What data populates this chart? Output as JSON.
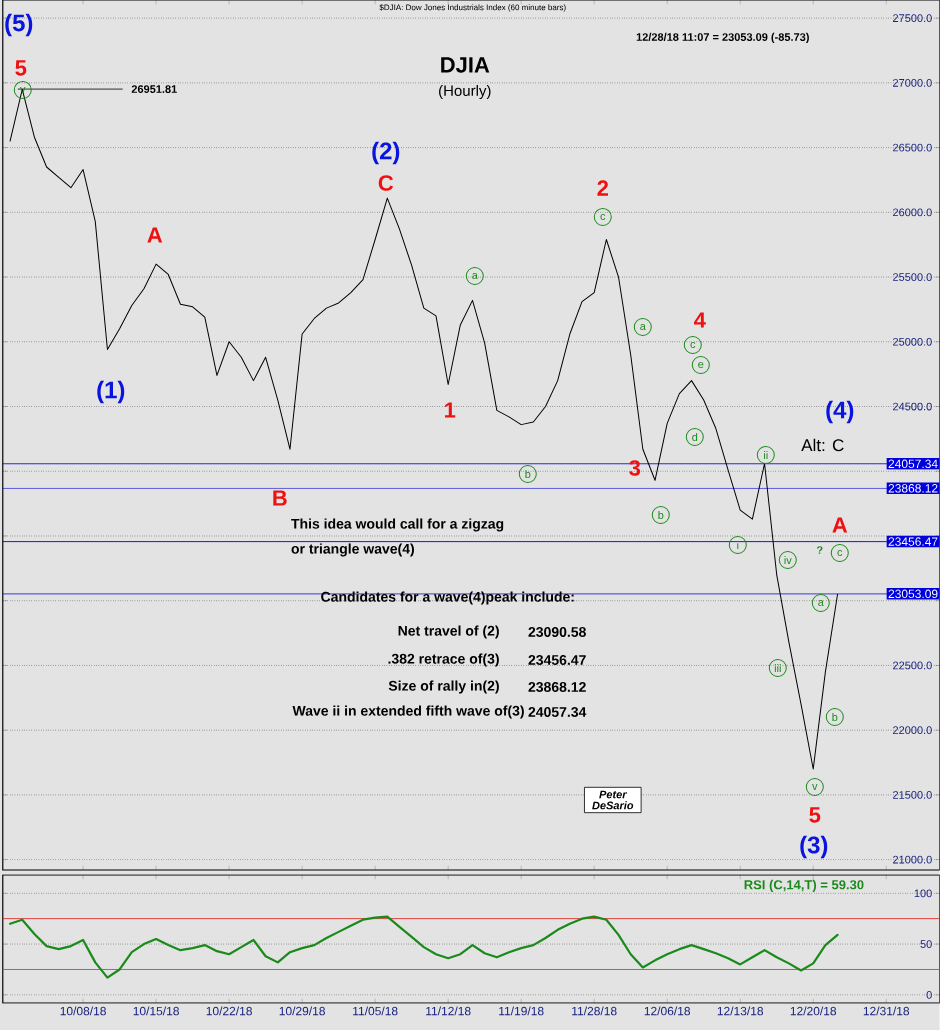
{
  "chart_data": [
    {
      "type": "line",
      "title": "DJIA",
      "subtitle": "(Hourly)",
      "color": "#000000",
      "values": [
        26550,
        26950,
        26580,
        26350,
        26270,
        26190,
        26330,
        25930,
        24940,
        25100,
        25280,
        25410,
        25600,
        25520,
        25290,
        25270,
        25190,
        24740,
        25000,
        24880,
        24700,
        24880,
        24550,
        24170,
        25060,
        25180,
        25260,
        25300,
        25380,
        25480,
        25790,
        26110,
        25870,
        25590,
        25260,
        25200,
        24670,
        25130,
        25320,
        24990,
        24470,
        24420,
        24360,
        24380,
        24500,
        24700,
        25060,
        25310,
        25380,
        25790,
        25500,
        24900,
        24170,
        23930,
        24370,
        24600,
        24700,
        24550,
        24330,
        24010,
        23700,
        23630,
        24060,
        23200,
        22680,
        22200,
        21700,
        22450,
        23050,
        null,
        null,
        null,
        null
      ],
      "ylim": [
        20920,
        27640
      ],
      "yticks": [
        {
          "value": 21000,
          "label": "21000.0"
        },
        {
          "value": 21500,
          "label": "21500.0"
        },
        {
          "value": 22000,
          "label": "22000.0"
        },
        {
          "value": 22500,
          "label": "22500.0"
        },
        {
          "value": 23000,
          "label": null
        },
        {
          "value": 23500,
          "label": null
        },
        {
          "value": 24000,
          "label": null
        },
        {
          "value": 24500,
          "label": "24500.0"
        },
        {
          "value": 25000,
          "label": "25000.0"
        },
        {
          "value": 25500,
          "label": "25500.0"
        },
        {
          "value": 26000,
          "label": "26000.0"
        },
        {
          "value": 26500,
          "label": "26500.0"
        },
        {
          "value": 27000,
          "label": "27000.0"
        },
        {
          "value": 27500,
          "label": "27500.0"
        }
      ],
      "tick_labels": "y",
      "grid": "y",
      "marker": "none",
      "line_style": "solid",
      "ref_lines": [
        {
          "axis": "y",
          "value": 26951.81,
          "label": "26951.81",
          "color": "#000000"
        },
        {
          "axis": "y",
          "value": 24057.34,
          "label": "24057.34",
          "color": "#0000dd"
        },
        {
          "axis": "y",
          "value": 23868.12,
          "label": "23868.12",
          "color": "#0000dd"
        },
        {
          "axis": "y",
          "value": 23456.47,
          "label": "23456.47",
          "color": "#0000dd"
        },
        {
          "axis": "y",
          "value": 23053.09,
          "label": "23053.09",
          "color": "#0000dd"
        }
      ],
      "annotations": [
        "(5)",
        "5",
        "v",
        "(1)",
        "A",
        "B",
        "(2)",
        "C",
        "1",
        "a",
        "b",
        "2",
        "c",
        "3",
        "a",
        "4",
        "c",
        "e",
        "d",
        "b",
        "ii",
        "i",
        "iv",
        "iii",
        "a",
        "b",
        "v",
        "5",
        "(3)",
        "A",
        "c",
        "?",
        "(4)",
        "Alt: C",
        "$DJIA: Dow Jones Industrials Index  (60 minute bars)",
        "12/28/18 11:07 = 23053.09 (-85.73)",
        "This idea would call for a zigzag",
        "or triangle wave(4)",
        "Candidates for a wave(4)peak include:",
        "Net travel of (2)",
        "23090.58",
        ".382 retrace of(3)",
        "23456.47",
        "Size of rally in(2)",
        "23868.12",
        "Wave ii in extended fifth wave of(3)",
        "24057.34",
        "Peter DeSario"
      ]
    },
    {
      "type": "line",
      "title": "RSI (C,14,T) = 59.30",
      "color": "#1a8a1a",
      "categories": [
        null,
        null,
        null,
        null,
        null,
        null,
        "10/08/18",
        null,
        null,
        null,
        null,
        null,
        "10/15/18",
        null,
        null,
        null,
        null,
        null,
        "10/22/18",
        null,
        null,
        null,
        null,
        null,
        "10/29/18",
        null,
        null,
        null,
        null,
        null,
        "11/05/18",
        null,
        null,
        null,
        null,
        null,
        "11/12/18",
        null,
        null,
        null,
        null,
        null,
        "11/19/18",
        null,
        null,
        null,
        null,
        null,
        "11/28/18",
        null,
        null,
        null,
        null,
        null,
        "12/06/18",
        null,
        null,
        null,
        null,
        null,
        "12/13/18",
        null,
        null,
        null,
        null,
        null,
        "12/20/18",
        null,
        null,
        null,
        null,
        null,
        "12/31/18"
      ],
      "values": [
        70,
        74,
        60,
        48,
        45,
        48,
        54,
        32,
        17,
        25,
        42,
        50,
        55,
        49,
        44,
        46,
        49,
        43,
        40,
        47,
        54,
        38,
        32,
        42,
        46,
        49,
        56,
        62,
        68,
        74,
        76,
        77,
        67,
        57,
        47,
        40,
        36,
        40,
        49,
        41,
        37,
        42,
        46,
        49,
        56,
        64,
        70,
        75,
        77,
        74,
        59,
        40,
        27,
        34,
        40,
        45,
        49,
        45,
        41,
        36,
        30,
        37,
        44,
        37,
        31,
        24,
        31,
        49,
        59,
        null,
        null,
        null,
        null
      ],
      "ylim": [
        -8,
        118
      ],
      "yticks": [
        0,
        50,
        100
      ],
      "grid": "y",
      "marker": "none",
      "line_style": "solid",
      "ref_lines": [
        {
          "axis": "y",
          "value": 75,
          "color": "#e02020"
        },
        {
          "axis": "y",
          "value": 25,
          "color": "#20a020"
        }
      ]
    }
  ]
}
